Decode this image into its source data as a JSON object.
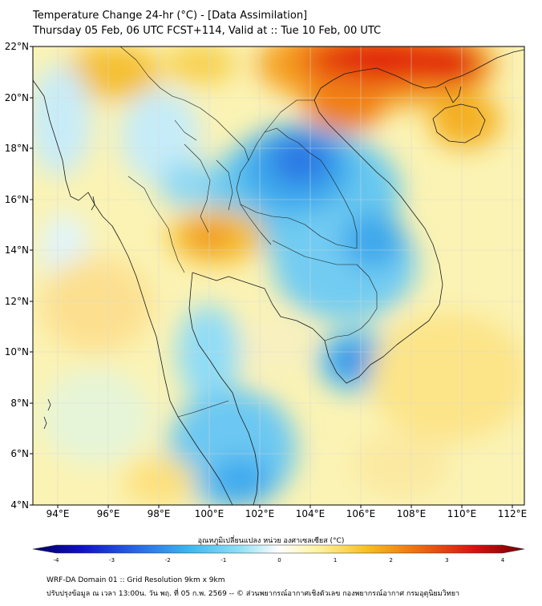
{
  "title": {
    "line1": "Temperature Change 24-hr (°C) - [Data Assimilation]",
    "line2": "Thursday 05 Feb, 06 UTC FCST+114, Valid at :: Tue 10 Feb, 00 UTC"
  },
  "map": {
    "lon_labels": [
      "94°E",
      "96°E",
      "98°E",
      "100°E",
      "102°E",
      "104°E",
      "106°E",
      "108°E",
      "110°E",
      "112°E"
    ],
    "lat_labels": [
      "22°N",
      "20°N",
      "18°N",
      "16°N",
      "14°N",
      "12°N",
      "10°N",
      "8°N",
      "6°N",
      "4°N"
    ],
    "lon_range": [
      93,
      112.5
    ],
    "lat_range": [
      4,
      22.2
    ],
    "anomalies": [
      {
        "region": "south-china",
        "lon": 108.5,
        "lat": 21.3,
        "value": 3.2
      },
      {
        "region": "hainan-north",
        "lon": 106.5,
        "lat": 19.5,
        "value": 2.6
      },
      {
        "region": "laos-northeast-thailand",
        "lon": 104.0,
        "lat": 17.0,
        "value": -2.4
      },
      {
        "region": "central-cambodia",
        "lon": 105.0,
        "lat": 13.5,
        "value": -1.7
      },
      {
        "region": "mekong-delta",
        "lon": 105.5,
        "lat": 9.8,
        "value": -2.0
      },
      {
        "region": "central-thailand",
        "lon": 99.8,
        "lat": 14.6,
        "value": 1.8
      },
      {
        "region": "myanmar-north",
        "lon": 96.8,
        "lat": 21.0,
        "value": 1.2
      },
      {
        "region": "andaman-sea",
        "lon": 96.5,
        "lat": 12.0,
        "value": 1.0
      },
      {
        "region": "malay-peninsula",
        "lon": 101.0,
        "lat": 7.5,
        "value": -1.1
      },
      {
        "region": "south-china-sea",
        "lon": 109.0,
        "lat": 8.0,
        "value": 0.9
      }
    ]
  },
  "colorbar": {
    "label": "อุณหภูมิเปลี่ยนแปลง หน่วย องศาเซลเซียส (°C)",
    "min": -4,
    "max": 4,
    "tick_labels": [
      "-4",
      "-3",
      "-2",
      "-1",
      "0",
      "1",
      "2",
      "3",
      "4"
    ],
    "colors": [
      "#00005e",
      "#1010c8",
      "#2a6ee8",
      "#3cb8f0",
      "#8fe0f6",
      "#ffffff",
      "#fff3a0",
      "#f7c020",
      "#ee7010",
      "#d81010",
      "#700000"
    ]
  },
  "footer": {
    "line1": "WRF-DA Domain 01 :: Grid Resolution 9km x 9km",
    "line2": "ปรับปรุงข้อมูล ณ เวลา 13:00น. วัน พฤ. ที่ 05 ก.พ. 2569 -- © ส่วนพยากรณ์อากาศเชิงตัวเลข กองพยากรณ์อากาศ กรมอุตุนิยมวิทยา"
  }
}
